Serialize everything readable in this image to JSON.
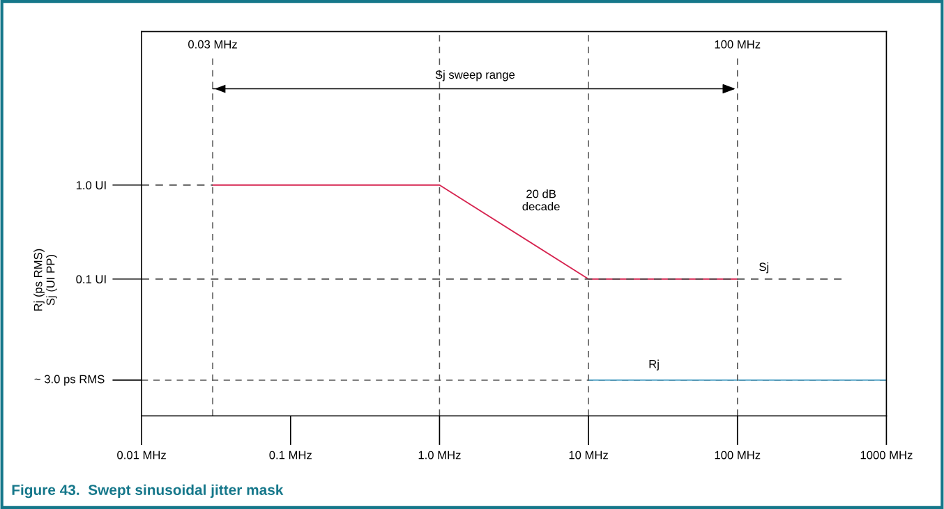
{
  "chart_data": {
    "type": "line",
    "title": "Figure 43.  Swept sinusoidal jitter mask",
    "ylabel": "Rj (ps RMS)\nSj (UI PP)",
    "log": "xy",
    "grid": false,
    "marker": "none",
    "xlim": [
      0.01,
      1000
    ],
    "xticks": [
      {
        "value": 0.01,
        "label": "0.01 MHz"
      },
      {
        "value": 0.1,
        "label": "0.1 MHz"
      },
      {
        "value": 1,
        "label": "1.0 MHz"
      },
      {
        "value": 10,
        "label": "10 MHz"
      },
      {
        "value": 100,
        "label": "100 MHz"
      },
      {
        "value": 1000,
        "label": "1000 MHz"
      }
    ],
    "ylim": [
      0.0035,
      43
    ],
    "yticks": [
      {
        "value": 1,
        "label": "1.0 UI"
      },
      {
        "value": 0.1,
        "label": "0.1 UI"
      },
      {
        "value": 0.0084,
        "label": null
      }
    ],
    "series": [
      {
        "name": "Sj",
        "color": "#d6234f",
        "line_style": "solid",
        "x": [
          0.03,
          1,
          10,
          100
        ],
        "values": [
          1,
          1,
          0.1,
          0.1
        ]
      },
      {
        "name": "Rj",
        "color": "#4a9fc4",
        "line_style": "solid",
        "x": [
          10,
          1000
        ],
        "values": [
          0.0084,
          0.0084
        ]
      },
      {
        "color": "#555555",
        "line_style": "dashed",
        "x": [
          0.01,
          0.03
        ],
        "values": [
          1,
          1
        ]
      },
      {
        "color": "#555555",
        "line_style": "dashed",
        "x": [
          0.01,
          500
        ],
        "values": [
          0.1,
          0.1
        ]
      }
    ],
    "ref_lines": [
      {
        "axis": "y",
        "value": 0.0084,
        "label": "~ 3.0 ps RMS",
        "color": "#555555",
        "line_style": "dashed"
      },
      {
        "axis": "x",
        "value": 0.03,
        "label": "0.03 MHz",
        "color": "#555555",
        "line_style": "dashed"
      },
      {
        "axis": "x",
        "value": 1,
        "color": "#555555",
        "line_style": "dashed"
      },
      {
        "axis": "x",
        "value": 10,
        "color": "#555555",
        "line_style": "dashed"
      },
      {
        "axis": "x",
        "value": 100,
        "label": "100 MHz",
        "color": "#555555",
        "line_style": "dashed"
      }
    ],
    "annotations": [
      "Sj sweep range",
      "20 dB\ndecade"
    ]
  }
}
